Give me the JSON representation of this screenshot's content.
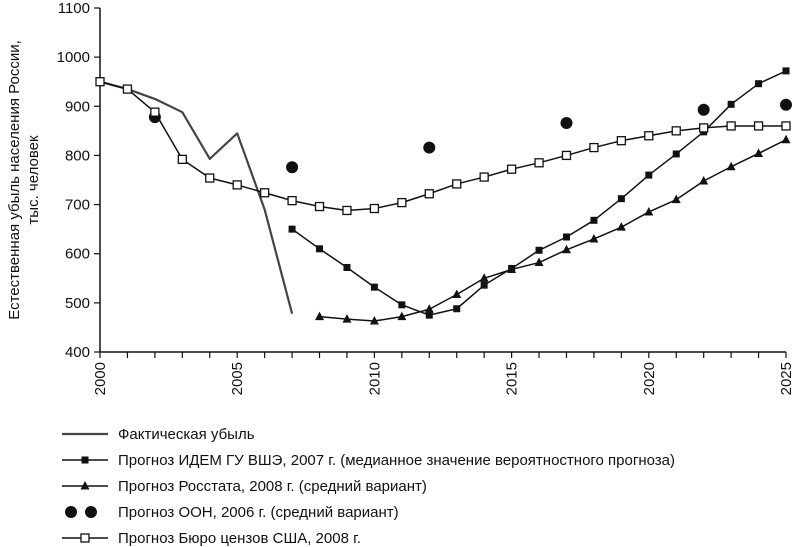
{
  "chart_data": {
    "type": "line",
    "title": "",
    "ylabel": [
      "Естественная убыль населения России,",
      "тыс. человек"
    ],
    "xlabel": "",
    "xlim": [
      2000,
      2025
    ],
    "ylim": [
      400,
      1100
    ],
    "x_ticks": [
      "2000",
      "2005",
      "2010",
      "2015",
      "2020",
      "2025"
    ],
    "y_ticks": [
      "400",
      "500",
      "600",
      "700",
      "800",
      "900",
      "1000",
      "1100"
    ],
    "grid": false,
    "legend_position": "bottom",
    "series": [
      {
        "name": "Фактическая убыль",
        "marker": "none",
        "color": "#444444",
        "points": [
          [
            2000,
            950
          ],
          [
            2001,
            935
          ],
          [
            2002,
            915
          ],
          [
            2003,
            888
          ],
          [
            2004,
            793
          ],
          [
            2005,
            845
          ],
          [
            2006,
            690
          ],
          [
            2007,
            478
          ]
        ]
      },
      {
        "name": "Прогноз ИДЕМ ГУ ВШЭ, 2007 г. (медианное значение вероятностного прогноза)",
        "marker": "square-filled",
        "color": "#111111",
        "points": [
          [
            2007,
            650
          ],
          [
            2008,
            610
          ],
          [
            2009,
            572
          ],
          [
            2010,
            532
          ],
          [
            2011,
            496
          ],
          [
            2012,
            475
          ],
          [
            2013,
            488
          ],
          [
            2014,
            536
          ],
          [
            2015,
            570
          ],
          [
            2016,
            607
          ],
          [
            2017,
            634
          ],
          [
            2018,
            668
          ],
          [
            2019,
            712
          ],
          [
            2020,
            760
          ],
          [
            2021,
            803
          ],
          [
            2022,
            848
          ],
          [
            2023,
            904
          ],
          [
            2024,
            946
          ],
          [
            2025,
            972
          ]
        ]
      },
      {
        "name": "Прогноз Росстата, 2008 г. (средний вариант)",
        "marker": "triangle",
        "color": "#111111",
        "points": [
          [
            2008,
            472
          ],
          [
            2009,
            467
          ],
          [
            2010,
            463
          ],
          [
            2011,
            472
          ],
          [
            2012,
            487
          ],
          [
            2013,
            517
          ],
          [
            2014,
            550
          ],
          [
            2015,
            568
          ],
          [
            2016,
            582
          ],
          [
            2017,
            608
          ],
          [
            2018,
            630
          ],
          [
            2019,
            654
          ],
          [
            2020,
            685
          ],
          [
            2021,
            710
          ],
          [
            2022,
            748
          ],
          [
            2023,
            777
          ],
          [
            2024,
            804
          ],
          [
            2025,
            832
          ]
        ]
      },
      {
        "name": "Прогноз ООН, 2006 г. (средний вариант)",
        "marker": "circle-filled",
        "color": "#111111",
        "points": [
          [
            2002,
            878
          ],
          [
            2007,
            776
          ],
          [
            2012,
            816
          ],
          [
            2017,
            866
          ],
          [
            2022,
            893
          ],
          [
            2025,
            903
          ]
        ]
      },
      {
        "name": "Прогноз Бюро цензов США, 2008 г.",
        "marker": "square-open",
        "color": "#111111",
        "points": [
          [
            2000,
            950
          ],
          [
            2001,
            935
          ],
          [
            2002,
            888
          ],
          [
            2003,
            792
          ],
          [
            2004,
            754
          ],
          [
            2005,
            740
          ],
          [
            2006,
            724
          ],
          [
            2007,
            708
          ],
          [
            2008,
            696
          ],
          [
            2009,
            688
          ],
          [
            2010,
            692
          ],
          [
            2011,
            704
          ],
          [
            2012,
            722
          ],
          [
            2013,
            742
          ],
          [
            2014,
            756
          ],
          [
            2015,
            772
          ],
          [
            2016,
            785
          ],
          [
            2017,
            800
          ],
          [
            2018,
            816
          ],
          [
            2019,
            830
          ],
          [
            2020,
            840
          ],
          [
            2021,
            850
          ],
          [
            2022,
            856
          ],
          [
            2023,
            860
          ],
          [
            2024,
            860
          ],
          [
            2025,
            860
          ]
        ]
      }
    ]
  }
}
